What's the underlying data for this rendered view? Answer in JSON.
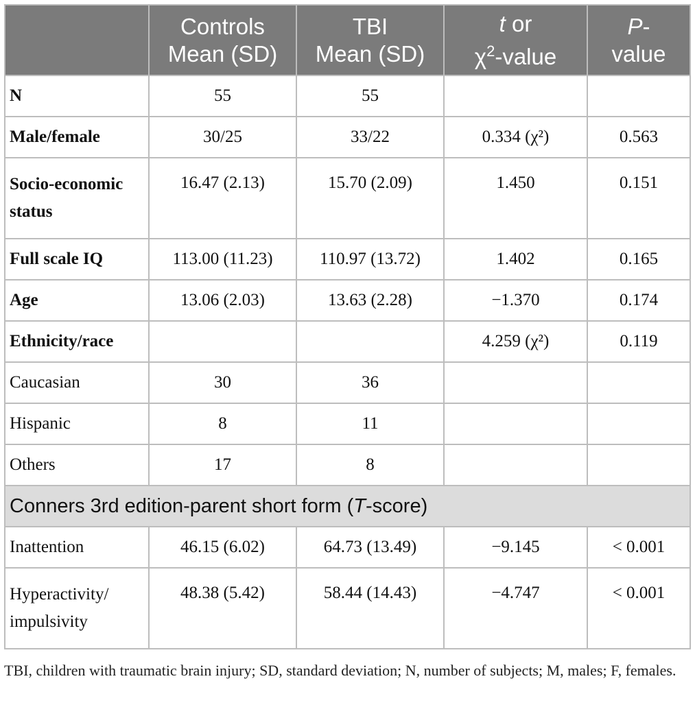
{
  "table": {
    "headers": [
      {
        "l1": "",
        "l2": ""
      },
      {
        "l1": "Controls",
        "l2": "Mean (SD)"
      },
      {
        "l1": "TBI",
        "l2": "Mean (SD)"
      },
      {
        "l1_italic": "t",
        "l1_rest": " or",
        "l2_prefix": "χ",
        "l2_sup": "2",
        "l2_suffix": "-value"
      },
      {
        "l1_italic": "P",
        "l1_rest": "-",
        "l2": "value"
      }
    ],
    "rows": [
      {
        "label": "N",
        "controls": "55",
        "tbi": "55",
        "t": "",
        "p": ""
      },
      {
        "label": "Male/female",
        "controls": "30/25",
        "tbi": "33/22",
        "t": "0.334 (χ²)",
        "p": "0.563"
      },
      {
        "label": "Socio-economic status",
        "controls": "16.47 (2.13)",
        "tbi": "15.70 (2.09)",
        "t": "1.450",
        "p": "0.151"
      },
      {
        "label": "Full scale IQ",
        "controls": "113.00 (11.23)",
        "tbi": "110.97 (13.72)",
        "t": "1.402",
        "p": "0.165"
      },
      {
        "label": "Age",
        "controls": "13.06 (2.03)",
        "tbi": "13.63 (2.28)",
        "t": "−1.370",
        "p": "0.174"
      },
      {
        "label": "Ethnicity/race",
        "controls": "",
        "tbi": "",
        "t": "4.259 (χ²)",
        "p": "0.119"
      },
      {
        "label": "Caucasian",
        "controls": "30",
        "tbi": "36",
        "t": "",
        "p": ""
      },
      {
        "label": "Hispanic",
        "controls": "8",
        "tbi": "11",
        "t": "",
        "p": ""
      },
      {
        "label": "Others",
        "controls": "17",
        "tbi": "8",
        "t": "",
        "p": ""
      }
    ],
    "section": {
      "prefix": "Conners 3rd edition-parent short form (",
      "italic": "T",
      "suffix": "-score)"
    },
    "rows2": [
      {
        "label": "Inattention",
        "controls": "46.15 (6.02)",
        "tbi": "64.73 (13.49)",
        "t": "−9.145",
        "p": "< 0.001"
      },
      {
        "label": "Hyperactivity/ impulsivity",
        "controls": "48.38 (5.42)",
        "tbi": "58.44 (14.43)",
        "t": "−4.747",
        "p": "< 0.001"
      }
    ]
  },
  "footnote": "TBI, children with traumatic brain injury; SD, standard deviation; N, number of subjects; M, males; F, females."
}
